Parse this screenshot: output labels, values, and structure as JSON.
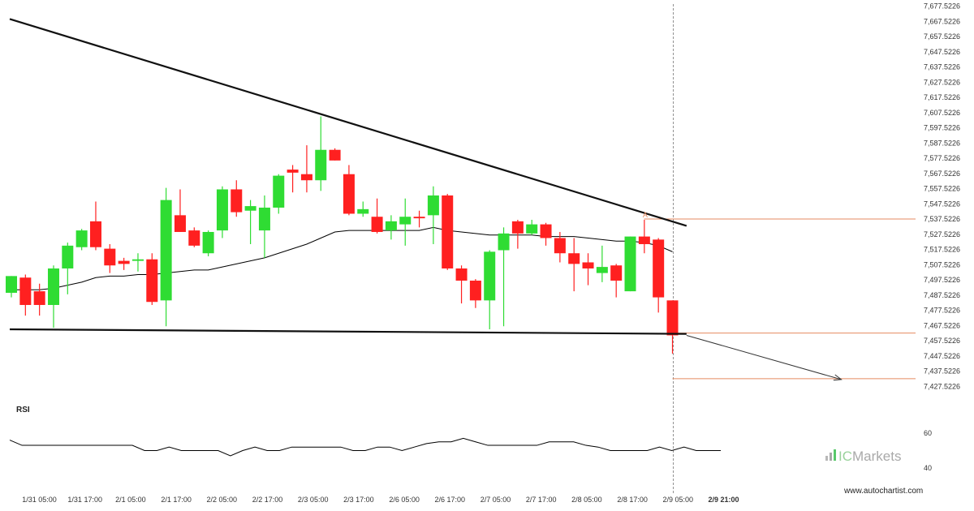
{
  "chart_data": {
    "type": "candlestick",
    "title": "",
    "xlabel": "",
    "ylabel": "",
    "ylim": [
      7420.5226,
      7682.5226
    ],
    "y_ticks": [
      "7,677.5226",
      "7,667.5226",
      "7,657.5226",
      "7,647.5226",
      "7,637.5226",
      "7,627.5226",
      "7,617.5226",
      "7,607.5226",
      "7,597.5226",
      "7,587.5226",
      "7,577.5226",
      "7,567.5226",
      "7,557.5226",
      "7,547.5226",
      "7,537.5226",
      "7,527.5226",
      "7,517.5226",
      "7,507.5226",
      "7,497.5226",
      "7,487.5226",
      "7,477.5226",
      "7,467.5226",
      "7,457.5226",
      "7,447.5226",
      "7,437.5226",
      "7,427.5226"
    ],
    "x_ticks": [
      "1/31 05:00",
      "1/31 17:00",
      "2/1 05:00",
      "2/1 17:00",
      "2/2 05:00",
      "2/2 17:00",
      "2/3 05:00",
      "2/3 17:00",
      "2/6 05:00",
      "2/6 17:00",
      "2/7 05:00",
      "2/7 17:00",
      "2/8 05:00",
      "2/8 17:00",
      "2/9 05:00",
      "2/9 21:00"
    ],
    "candles": [
      {
        "o": 7489,
        "h": 7500,
        "l": 7486,
        "c": 7500
      },
      {
        "o": 7499,
        "h": 7501,
        "l": 7474,
        "c": 7481
      },
      {
        "o": 7490,
        "h": 7495,
        "l": 7474,
        "c": 7481
      },
      {
        "o": 7481,
        "h": 7507,
        "l": 7466,
        "c": 7505
      },
      {
        "o": 7505,
        "h": 7522,
        "l": 7488,
        "c": 7520
      },
      {
        "o": 7519,
        "h": 7531,
        "l": 7517,
        "c": 7530
      },
      {
        "o": 7536,
        "h": 7549,
        "l": 7517,
        "c": 7519
      },
      {
        "o": 7518,
        "h": 7521,
        "l": 7502,
        "c": 7507
      },
      {
        "o": 7510,
        "h": 7512,
        "l": 7504,
        "c": 7508
      },
      {
        "o": 7510,
        "h": 7515,
        "l": 7503,
        "c": 7511
      },
      {
        "o": 7511,
        "h": 7515,
        "l": 7481,
        "c": 7483
      },
      {
        "o": 7484,
        "h": 7558,
        "l": 7467,
        "c": 7550
      },
      {
        "o": 7540,
        "h": 7557,
        "l": 7529,
        "c": 7529
      },
      {
        "o": 7530,
        "h": 7532,
        "l": 7519,
        "c": 7520
      },
      {
        "o": 7515,
        "h": 7530,
        "l": 7513,
        "c": 7529
      },
      {
        "o": 7530,
        "h": 7559,
        "l": 7525,
        "c": 7557
      },
      {
        "o": 7557,
        "h": 7563,
        "l": 7539,
        "c": 7542
      },
      {
        "o": 7543,
        "h": 7550,
        "l": 7521,
        "c": 7546
      },
      {
        "o": 7530,
        "h": 7553,
        "l": 7512,
        "c": 7545
      },
      {
        "o": 7545,
        "h": 7567,
        "l": 7541,
        "c": 7566
      },
      {
        "o": 7570,
        "h": 7573,
        "l": 7555,
        "c": 7568
      },
      {
        "o": 7567,
        "h": 7586,
        "l": 7555,
        "c": 7563
      },
      {
        "o": 7563,
        "h": 7605,
        "l": 7556,
        "c": 7583
      },
      {
        "o": 7583,
        "h": 7584,
        "l": 7576,
        "c": 7576
      },
      {
        "o": 7567,
        "h": 7573,
        "l": 7540,
        "c": 7541
      },
      {
        "o": 7541,
        "h": 7549,
        "l": 7539,
        "c": 7544
      },
      {
        "o": 7539,
        "h": 7551,
        "l": 7528,
        "c": 7529
      },
      {
        "o": 7530,
        "h": 7540,
        "l": 7524,
        "c": 7536
      },
      {
        "o": 7534,
        "h": 7551,
        "l": 7520,
        "c": 7539
      },
      {
        "o": 7539,
        "h": 7543,
        "l": 7532,
        "c": 7538
      },
      {
        "o": 7540,
        "h": 7559,
        "l": 7521,
        "c": 7553
      },
      {
        "o": 7553,
        "h": 7554,
        "l": 7504,
        "c": 7505
      },
      {
        "o": 7505,
        "h": 7507,
        "l": 7482,
        "c": 7497
      },
      {
        "o": 7497,
        "h": 7498,
        "l": 7479,
        "c": 7484
      },
      {
        "o": 7484,
        "h": 7517,
        "l": 7465,
        "c": 7516
      },
      {
        "o": 7517,
        "h": 7532,
        "l": 7467,
        "c": 7528
      },
      {
        "o": 7536,
        "h": 7537,
        "l": 7518,
        "c": 7528
      },
      {
        "o": 7528,
        "h": 7537,
        "l": 7527,
        "c": 7534
      },
      {
        "o": 7534,
        "h": 7535,
        "l": 7520,
        "c": 7525
      },
      {
        "o": 7525,
        "h": 7529,
        "l": 7509,
        "c": 7515
      },
      {
        "o": 7515,
        "h": 7525,
        "l": 7490,
        "c": 7508
      },
      {
        "o": 7509,
        "h": 7515,
        "l": 7494,
        "c": 7505
      },
      {
        "o": 7502,
        "h": 7520,
        "l": 7496,
        "c": 7506
      },
      {
        "o": 7507,
        "h": 7508,
        "l": 7486,
        "c": 7497
      },
      {
        "o": 7490,
        "h": 7526,
        "l": 7490,
        "c": 7526
      },
      {
        "o": 7526,
        "h": 7537,
        "l": 7515,
        "c": 7521
      },
      {
        "o": 7524,
        "h": 7525,
        "l": 7476,
        "c": 7486
      },
      {
        "o": 7484,
        "h": 7484,
        "l": 7449,
        "c": 7461
      }
    ],
    "moving_average": [
      7491,
      7491,
      7491,
      7492,
      7494,
      7496,
      7499,
      7500,
      7500,
      7501,
      7501,
      7502,
      7503,
      7504,
      7504,
      7506,
      7508,
      7510,
      7512,
      7515,
      7518,
      7521,
      7525,
      7529,
      7530,
      7530,
      7530,
      7530,
      7530,
      7530,
      7532,
      7530,
      7529,
      7528,
      7527,
      7527,
      7527,
      7527,
      7526,
      7526,
      7526,
      7525,
      7524,
      7523,
      7523,
      7522,
      7520,
      7516
    ],
    "triangle_upper": [
      {
        "from": [
          0,
          7669
        ],
        "to": [
          48,
          7533
        ]
      }
    ],
    "triangle_lower": [
      {
        "from": [
          0,
          7465
        ],
        "to": [
          48,
          7462
        ]
      }
    ],
    "levels": {
      "upper": 7537.5226,
      "entry": 7462.5226,
      "target": 7432.5226
    },
    "forecast_arrow": {
      "from": [
        48,
        7461
      ],
      "to": [
        59,
        7432
      ]
    },
    "marker_label": "A",
    "rsi": {
      "label": "RSI",
      "ticks": [
        60,
        40
      ],
      "values": [
        56,
        53,
        53,
        53,
        53,
        53,
        53,
        53,
        53,
        53,
        53,
        50,
        50,
        52,
        50,
        50,
        50,
        50,
        47,
        50,
        52,
        50,
        50,
        52,
        52,
        52,
        52,
        52,
        50,
        50,
        52,
        52,
        50,
        52,
        54,
        55,
        55,
        57,
        55,
        53,
        53,
        53,
        53,
        53,
        55,
        55,
        55,
        53,
        52,
        50,
        50,
        50,
        50,
        52,
        50,
        52,
        50,
        50,
        50
      ]
    }
  },
  "branding": {
    "logo_prefix": "IC",
    "logo_suffix": "Markets",
    "website": "www.autochartist.com"
  },
  "colors": {
    "bull": "#2fdc33",
    "bear": "#ff2020",
    "level": "#e58a60",
    "trendline": "#111111"
  }
}
